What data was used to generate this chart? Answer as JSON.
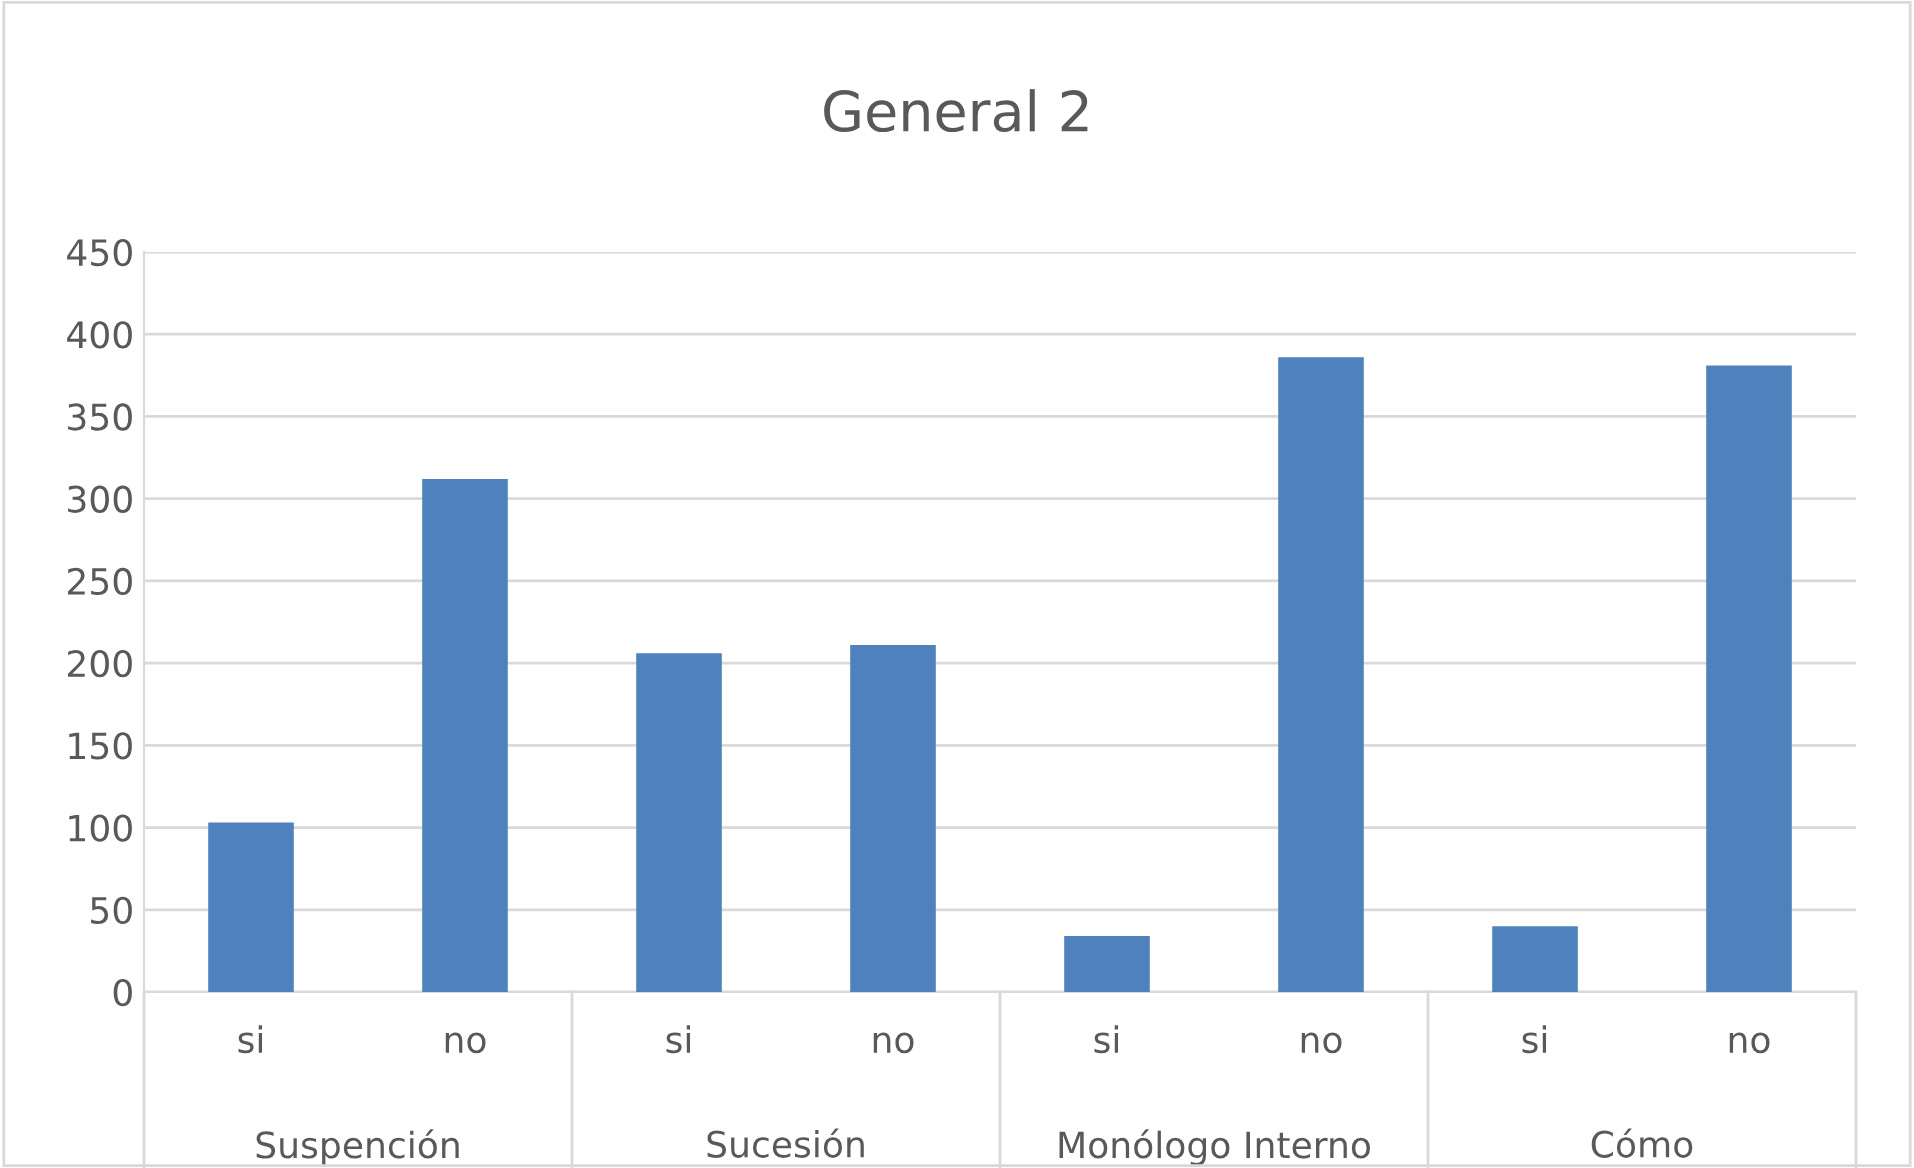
{
  "chart_data": {
    "type": "bar",
    "title": "General 2",
    "categories": [
      "si",
      "no",
      "si",
      "no",
      "si",
      "no",
      "si",
      "no"
    ],
    "values": [
      103,
      312,
      206,
      211,
      34,
      386,
      40,
      381
    ],
    "color": "#4f81bd",
    "annotations": [
      "Suspención",
      "Sucesión",
      "Monólogo Interno",
      "Cómo"
    ],
    "ylim": [
      0,
      450
    ],
    "yticks": [
      0,
      50,
      100,
      150,
      200,
      250,
      300,
      350,
      400,
      450
    ],
    "grid": "y",
    "legend": false
  }
}
